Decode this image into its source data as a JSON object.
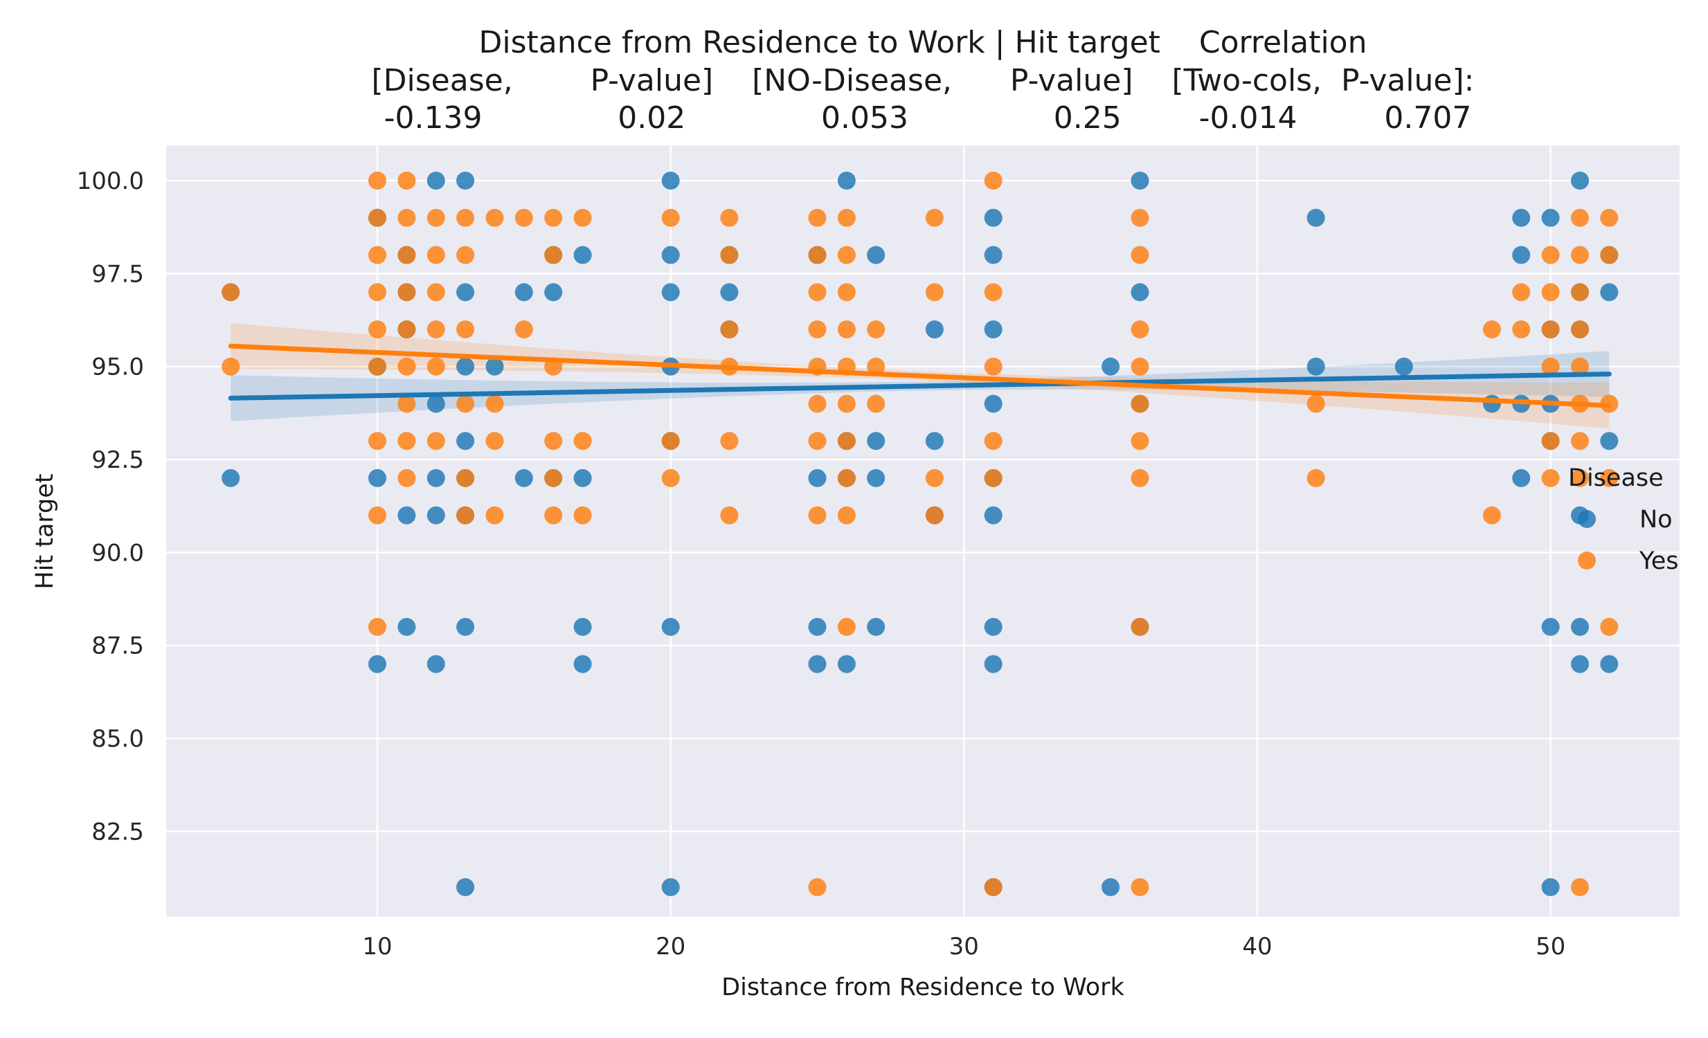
{
  "chart_data": {
    "type": "scatter",
    "title_lines": [
      "Distance from Residence to Work | Hit target    Correlation",
      "[Disease,        P-value]    [NO-Disease,      P-value]    [Two-cols,  P-value]:",
      " -0.139              0.02              0.053               0.25        -0.014         0.707"
    ],
    "xlabel": "Distance from Residence to Work",
    "ylabel": "Hit target",
    "xlim": [
      2.8,
      54.4
    ],
    "ylim": [
      80.2,
      100.95
    ],
    "xticks": [
      10,
      20,
      30,
      40,
      50
    ],
    "yticks": [
      82.5,
      85.0,
      87.5,
      90.0,
      92.5,
      95.0,
      97.5,
      100.0
    ],
    "grid": true,
    "background": "#eaeaf2",
    "legend": {
      "title": "Disease",
      "position": "right",
      "entries": [
        "No",
        "Yes"
      ]
    },
    "series": [
      {
        "name": "No",
        "color": "#1f77b4",
        "points": [
          [
            5,
            92
          ],
          [
            5,
            97
          ],
          [
            10,
            87
          ],
          [
            10,
            92
          ],
          [
            10,
            95
          ],
          [
            10,
            99
          ],
          [
            11,
            88
          ],
          [
            11,
            91
          ],
          [
            11,
            96
          ],
          [
            11,
            97
          ],
          [
            11,
            98
          ],
          [
            12,
            87
          ],
          [
            12,
            91
          ],
          [
            12,
            92
          ],
          [
            12,
            94
          ],
          [
            12,
            100
          ],
          [
            13,
            81
          ],
          [
            13,
            88
          ],
          [
            13,
            91
          ],
          [
            13,
            92
          ],
          [
            13,
            93
          ],
          [
            13,
            95
          ],
          [
            13,
            97
          ],
          [
            13,
            100
          ],
          [
            14,
            95
          ],
          [
            15,
            92
          ],
          [
            15,
            97
          ],
          [
            16,
            92
          ],
          [
            16,
            97
          ],
          [
            16,
            98
          ],
          [
            17,
            87
          ],
          [
            17,
            88
          ],
          [
            17,
            92
          ],
          [
            17,
            98
          ],
          [
            20,
            81
          ],
          [
            20,
            88
          ],
          [
            20,
            93
          ],
          [
            20,
            95
          ],
          [
            20,
            97
          ],
          [
            20,
            98
          ],
          [
            20,
            100
          ],
          [
            22,
            96
          ],
          [
            22,
            97
          ],
          [
            22,
            98
          ],
          [
            25,
            87
          ],
          [
            25,
            88
          ],
          [
            25,
            92
          ],
          [
            25,
            98
          ],
          [
            26,
            87
          ],
          [
            26,
            92
          ],
          [
            26,
            93
          ],
          [
            26,
            100
          ],
          [
            27,
            88
          ],
          [
            27,
            92
          ],
          [
            27,
            93
          ],
          [
            27,
            98
          ],
          [
            29,
            91
          ],
          [
            29,
            93
          ],
          [
            29,
            96
          ],
          [
            31,
            81
          ],
          [
            31,
            87
          ],
          [
            31,
            88
          ],
          [
            31,
            91
          ],
          [
            31,
            92
          ],
          [
            31,
            94
          ],
          [
            31,
            96
          ],
          [
            31,
            98
          ],
          [
            31,
            99
          ],
          [
            35,
            81
          ],
          [
            35,
            95
          ],
          [
            36,
            88
          ],
          [
            36,
            94
          ],
          [
            36,
            97
          ],
          [
            36,
            100
          ],
          [
            42,
            95
          ],
          [
            42,
            99
          ],
          [
            45,
            95
          ],
          [
            48,
            94
          ],
          [
            49,
            92
          ],
          [
            49,
            94
          ],
          [
            49,
            98
          ],
          [
            49,
            99
          ],
          [
            50,
            81
          ],
          [
            50,
            88
          ],
          [
            50,
            93
          ],
          [
            50,
            94
          ],
          [
            50,
            96
          ],
          [
            50,
            99
          ],
          [
            51,
            87
          ],
          [
            51,
            88
          ],
          [
            51,
            91
          ],
          [
            51,
            96
          ],
          [
            51,
            97
          ],
          [
            51,
            100
          ],
          [
            52,
            87
          ],
          [
            52,
            93
          ],
          [
            52,
            97
          ],
          [
            52,
            98
          ]
        ],
        "regression": {
          "x": [
            5,
            52
          ],
          "y": [
            94.15,
            94.8
          ]
        }
      },
      {
        "name": "Yes",
        "color": "#ff7f0e",
        "points": [
          [
            5,
            95
          ],
          [
            5,
            97
          ],
          [
            10,
            88
          ],
          [
            10,
            91
          ],
          [
            10,
            93
          ],
          [
            10,
            95
          ],
          [
            10,
            96
          ],
          [
            10,
            97
          ],
          [
            10,
            98
          ],
          [
            10,
            99
          ],
          [
            10,
            100
          ],
          [
            11,
            92
          ],
          [
            11,
            93
          ],
          [
            11,
            94
          ],
          [
            11,
            95
          ],
          [
            11,
            96
          ],
          [
            11,
            97
          ],
          [
            11,
            98
          ],
          [
            11,
            99
          ],
          [
            11,
            100
          ],
          [
            12,
            93
          ],
          [
            12,
            95
          ],
          [
            12,
            96
          ],
          [
            12,
            97
          ],
          [
            12,
            98
          ],
          [
            12,
            99
          ],
          [
            13,
            91
          ],
          [
            13,
            92
          ],
          [
            13,
            94
          ],
          [
            13,
            96
          ],
          [
            13,
            98
          ],
          [
            13,
            99
          ],
          [
            14,
            91
          ],
          [
            14,
            93
          ],
          [
            14,
            94
          ],
          [
            14,
            99
          ],
          [
            15,
            96
          ],
          [
            15,
            99
          ],
          [
            16,
            91
          ],
          [
            16,
            92
          ],
          [
            16,
            93
          ],
          [
            16,
            95
          ],
          [
            16,
            98
          ],
          [
            16,
            99
          ],
          [
            17,
            91
          ],
          [
            17,
            93
          ],
          [
            17,
            99
          ],
          [
            20,
            92
          ],
          [
            20,
            93
          ],
          [
            20,
            99
          ],
          [
            22,
            91
          ],
          [
            22,
            93
          ],
          [
            22,
            95
          ],
          [
            22,
            96
          ],
          [
            22,
            98
          ],
          [
            22,
            99
          ],
          [
            25,
            81
          ],
          [
            25,
            91
          ],
          [
            25,
            93
          ],
          [
            25,
            94
          ],
          [
            25,
            95
          ],
          [
            25,
            96
          ],
          [
            25,
            97
          ],
          [
            25,
            98
          ],
          [
            25,
            99
          ],
          [
            26,
            88
          ],
          [
            26,
            91
          ],
          [
            26,
            92
          ],
          [
            26,
            93
          ],
          [
            26,
            94
          ],
          [
            26,
            95
          ],
          [
            26,
            96
          ],
          [
            26,
            97
          ],
          [
            26,
            98
          ],
          [
            26,
            99
          ],
          [
            27,
            94
          ],
          [
            27,
            95
          ],
          [
            27,
            96
          ],
          [
            29,
            91
          ],
          [
            29,
            92
          ],
          [
            29,
            97
          ],
          [
            29,
            99
          ],
          [
            31,
            81
          ],
          [
            31,
            92
          ],
          [
            31,
            93
          ],
          [
            31,
            95
          ],
          [
            31,
            97
          ],
          [
            31,
            100
          ],
          [
            36,
            81
          ],
          [
            36,
            88
          ],
          [
            36,
            92
          ],
          [
            36,
            93
          ],
          [
            36,
            94
          ],
          [
            36,
            95
          ],
          [
            36,
            96
          ],
          [
            36,
            98
          ],
          [
            36,
            99
          ],
          [
            42,
            92
          ],
          [
            42,
            94
          ],
          [
            48,
            91
          ],
          [
            48,
            96
          ],
          [
            49,
            96
          ],
          [
            49,
            97
          ],
          [
            50,
            92
          ],
          [
            50,
            93
          ],
          [
            50,
            95
          ],
          [
            50,
            96
          ],
          [
            50,
            97
          ],
          [
            50,
            98
          ],
          [
            51,
            81
          ],
          [
            51,
            92
          ],
          [
            51,
            93
          ],
          [
            51,
            94
          ],
          [
            51,
            95
          ],
          [
            51,
            96
          ],
          [
            51,
            97
          ],
          [
            51,
            98
          ],
          [
            51,
            99
          ],
          [
            52,
            88
          ],
          [
            52,
            92
          ],
          [
            52,
            94
          ],
          [
            52,
            98
          ],
          [
            52,
            99
          ]
        ],
        "regression": {
          "x": [
            5,
            52
          ],
          "y": [
            95.55,
            93.95
          ]
        }
      }
    ]
  }
}
